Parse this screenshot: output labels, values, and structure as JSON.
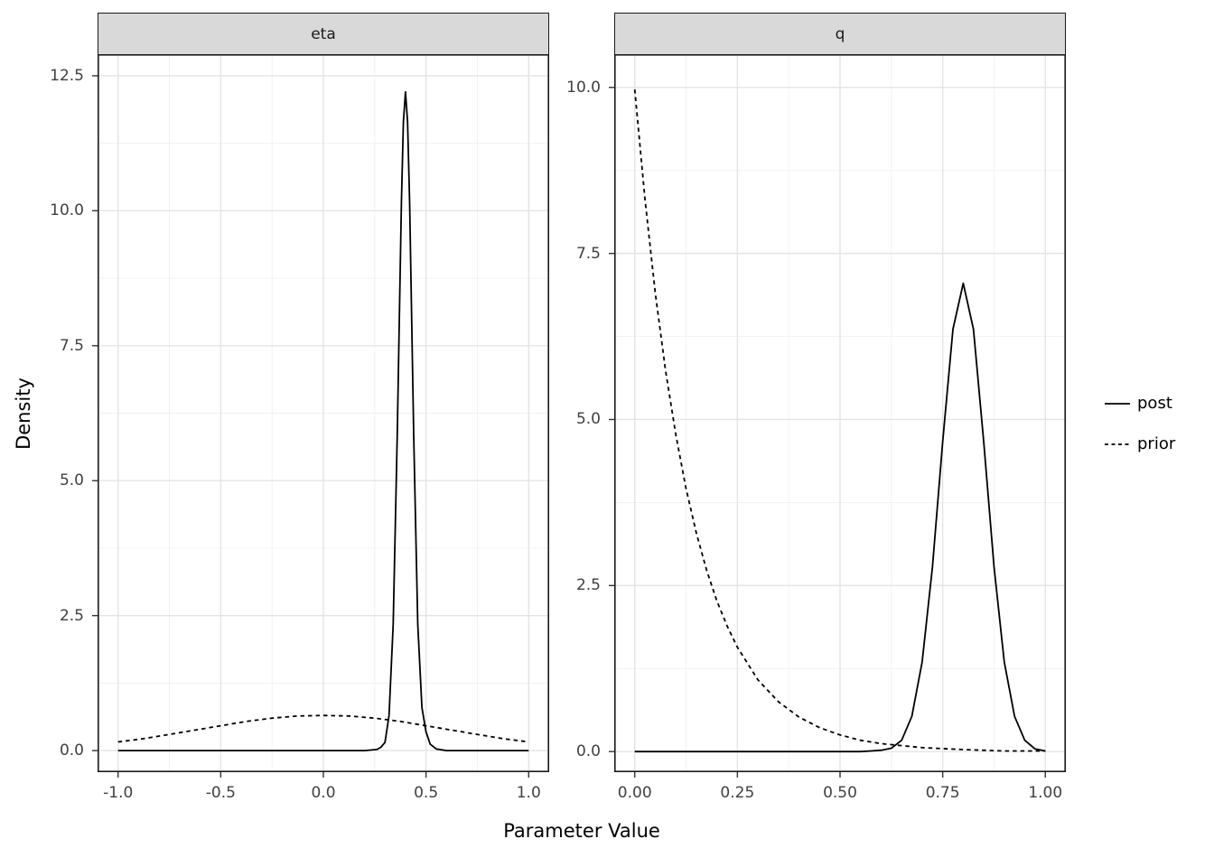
{
  "figure": {
    "x_axis_title": "Parameter Value",
    "y_axis_title": "Density",
    "background_color": "#ffffff",
    "panel_background_color": "#ffffff",
    "panel_border_color": "#1a1a1a",
    "grid_major_color": "#e4e4e4",
    "grid_minor_color": "#f1f1f1",
    "strip_background_color": "#d9d9d9",
    "curve_color": "#000000"
  },
  "legend": {
    "position": "right",
    "items": [
      {
        "label": "post",
        "linetype": "solid"
      },
      {
        "label": "prior",
        "linetype": "dashed"
      }
    ]
  },
  "chart_data": [
    {
      "type": "line",
      "facet": "eta",
      "xlim": [
        -1.1,
        1.1
      ],
      "ylim": [
        -0.4,
        12.9
      ],
      "xticks": [
        -1.0,
        -0.5,
        0.0,
        0.5,
        1.0
      ],
      "xtick_labels": [
        "-1.0",
        "-0.5",
        "0.0",
        "0.5",
        "1.0"
      ],
      "yticks": [
        0.0,
        2.5,
        5.0,
        7.5,
        10.0,
        12.5
      ],
      "ytick_labels": [
        "0.0",
        "2.5",
        "5.0",
        "7.5",
        "10.0",
        "12.5"
      ],
      "series": [
        {
          "name": "post",
          "linetype": "solid",
          "x": [
            -1.0,
            -0.5,
            0.0,
            0.2,
            0.26,
            0.28,
            0.3,
            0.32,
            0.34,
            0.36,
            0.38,
            0.39,
            0.4,
            0.41,
            0.42,
            0.44,
            0.46,
            0.48,
            0.5,
            0.52,
            0.55,
            0.6,
            0.8,
            1.0
          ],
          "y": [
            0,
            0,
            0,
            0,
            0.02,
            0.06,
            0.15,
            0.65,
            2.34,
            5.85,
            10.15,
            11.65,
            12.2,
            11.65,
            10.15,
            5.85,
            2.34,
            0.8,
            0.35,
            0.12,
            0.03,
            0,
            0,
            0
          ]
        },
        {
          "name": "prior",
          "linetype": "dashed",
          "x": [
            -1.0,
            -0.875,
            -0.75,
            -0.625,
            -0.5,
            -0.375,
            -0.25,
            -0.125,
            0.0,
            0.125,
            0.25,
            0.375,
            0.5,
            0.625,
            0.75,
            0.875,
            1.0
          ],
          "y": [
            0.16,
            0.22,
            0.3,
            0.38,
            0.46,
            0.54,
            0.6,
            0.64,
            0.65,
            0.64,
            0.6,
            0.54,
            0.46,
            0.38,
            0.3,
            0.22,
            0.16
          ]
        }
      ]
    },
    {
      "type": "line",
      "facet": "q",
      "xlim": [
        -0.05,
        1.05
      ],
      "ylim": [
        -0.31,
        10.5
      ],
      "xticks": [
        0.0,
        0.25,
        0.5,
        0.75,
        1.0
      ],
      "xtick_labels": [
        "0.00",
        "0.25",
        "0.50",
        "0.75",
        "1.00"
      ],
      "yticks": [
        0.0,
        2.5,
        5.0,
        7.5,
        10.0
      ],
      "ytick_labels": [
        "0.0",
        "2.5",
        "5.0",
        "7.5",
        "10.0"
      ],
      "series": [
        {
          "name": "post",
          "linetype": "solid",
          "x": [
            0.0,
            0.3,
            0.5,
            0.55,
            0.575,
            0.6,
            0.625,
            0.65,
            0.675,
            0.7,
            0.725,
            0.75,
            0.775,
            0.8,
            0.825,
            0.85,
            0.875,
            0.9,
            0.925,
            0.95,
            0.975,
            1.0
          ],
          "y": [
            0,
            0,
            0,
            0,
            0.01,
            0.02,
            0.05,
            0.17,
            0.53,
            1.35,
            2.78,
            4.66,
            6.36,
            7.05,
            6.36,
            4.66,
            2.78,
            1.35,
            0.53,
            0.17,
            0.04,
            0.01
          ]
        },
        {
          "name": "prior",
          "linetype": "dashed",
          "x": [
            0.0,
            0.025,
            0.05,
            0.075,
            0.1,
            0.125,
            0.15,
            0.175,
            0.2,
            0.225,
            0.25,
            0.3,
            0.35,
            0.4,
            0.45,
            0.5,
            0.55,
            0.6,
            0.7,
            0.8,
            0.9,
            1.0
          ],
          "y": [
            9.97,
            8.31,
            6.9,
            5.74,
            4.77,
            3.96,
            3.29,
            2.73,
            2.27,
            1.89,
            1.57,
            1.08,
            0.75,
            0.52,
            0.36,
            0.25,
            0.17,
            0.12,
            0.06,
            0.03,
            0.01,
            0.01
          ]
        }
      ]
    }
  ]
}
